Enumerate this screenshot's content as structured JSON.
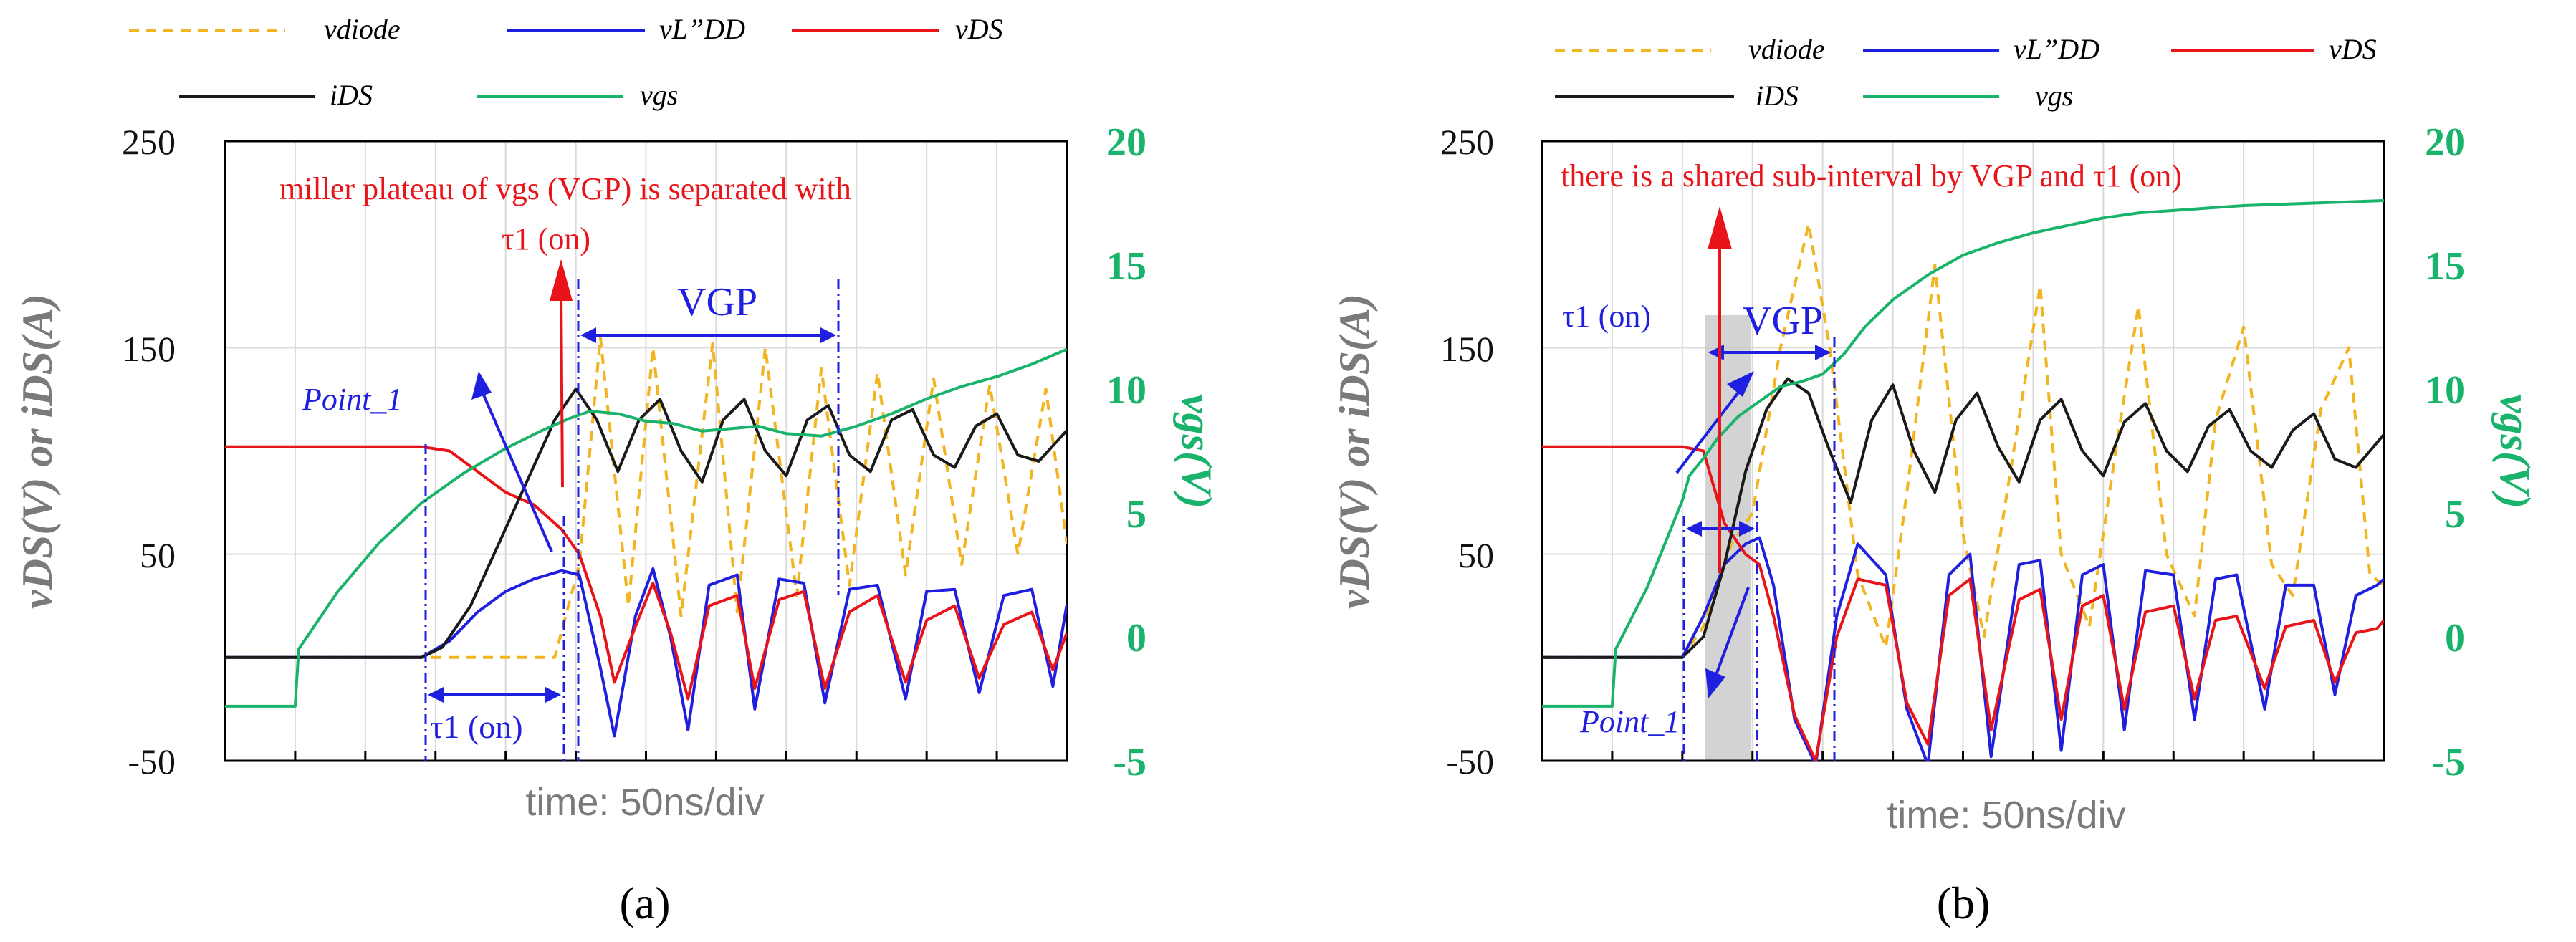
{
  "figure": {
    "panels": [
      {
        "caption": "(a)",
        "legend": [
          "vdiode",
          "vL”DD",
          "vDS",
          "iDS",
          "vgs"
        ],
        "ylabel_left": "vDS(V) or iDS(A)",
        "ylabel_right": "vgs(V)",
        "xlabel": "time: 50ns/div",
        "annotations": {
          "note_line1": "miller plateau of vgs (VGP) is  separated with",
          "note_line2": "τ1 (on)",
          "vgp": "VGP",
          "tau": "τ1 (on)",
          "point": "Point_1"
        }
      },
      {
        "caption": "(b)",
        "legend": [
          "vdiode",
          "vL”DD",
          "vDS",
          "iDS",
          "vgs"
        ],
        "ylabel_left": "vDS(V) or iDS(A)",
        "ylabel_right": "vgs(V)",
        "xlabel": "time: 50ns/div",
        "annotations": {
          "note_line1": "there is a shared sub-interval by VGP and τ1 (on)",
          "vgp": "VGP",
          "tau": "τ1 (on)",
          "point": "Point_1"
        }
      }
    ]
  },
  "chart_data": [
    {
      "type": "line",
      "title": "(a)",
      "xlabel": "time: 50ns/div",
      "ylabel": "vDS(V) or iDS(A)",
      "ylabel_right": "vgs(V)",
      "ylim": [
        -50,
        250
      ],
      "ylim_right": [
        -5,
        20
      ],
      "yticks": [
        -50,
        50,
        150,
        250
      ],
      "yticks_right": [
        -5,
        0,
        5,
        10,
        15,
        20
      ],
      "xlim": [
        0,
        12
      ],
      "grid": true,
      "series": [
        {
          "name": "vdiode",
          "color": "#f2b521",
          "dash": true,
          "x": [
            0,
            4.7,
            5.05,
            5.35,
            5.75,
            6.1,
            6.5,
            6.95,
            7.3,
            7.7,
            8.15,
            8.5,
            8.9,
            9.3,
            9.7,
            10.1,
            10.5,
            10.9,
            11.3,
            11.7,
            12
          ],
          "y": [
            0,
            0,
            45,
            155,
            25,
            150,
            20,
            152,
            22,
            150,
            30,
            140,
            35,
            138,
            40,
            135,
            45,
            132,
            50,
            130,
            55
          ]
        },
        {
          "name": "vL”DD",
          "color": "#1f1fe0",
          "x": [
            0,
            2.8,
            3.2,
            3.6,
            4.0,
            4.4,
            4.8,
            5.05,
            5.35,
            5.55,
            5.85,
            6.1,
            6.35,
            6.6,
            6.9,
            7.3,
            7.55,
            7.9,
            8.25,
            8.55,
            8.9,
            9.3,
            9.7,
            10.0,
            10.4,
            10.75,
            11.1,
            11.5,
            11.8,
            12
          ],
          "y": [
            0,
            0,
            8,
            22,
            32,
            38,
            42,
            40,
            -5,
            -38,
            20,
            43,
            10,
            -35,
            35,
            40,
            -25,
            38,
            36,
            -22,
            33,
            35,
            -20,
            32,
            33,
            -17,
            30,
            33,
            -14,
            26
          ]
        },
        {
          "name": "vDS",
          "color": "#e8141a",
          "x": [
            0,
            2.8,
            3.2,
            3.6,
            4.0,
            4.4,
            4.8,
            5.05,
            5.35,
            5.55,
            5.85,
            6.1,
            6.35,
            6.6,
            6.9,
            7.3,
            7.55,
            7.9,
            8.25,
            8.55,
            8.9,
            9.3,
            9.7,
            10.0,
            10.4,
            10.75,
            11.1,
            11.5,
            11.8,
            12
          ],
          "y": [
            102,
            102,
            100,
            90,
            80,
            74,
            62,
            50,
            20,
            -12,
            15,
            36,
            12,
            -20,
            25,
            30,
            -15,
            28,
            32,
            -15,
            22,
            30,
            -12,
            18,
            25,
            -10,
            16,
            22,
            -6,
            12
          ]
        },
        {
          "name": "iDS",
          "color": "#1a1a1a",
          "x": [
            0,
            2.8,
            3.1,
            3.5,
            3.9,
            4.3,
            4.7,
            5.0,
            5.3,
            5.6,
            5.9,
            6.2,
            6.5,
            6.8,
            7.1,
            7.4,
            7.7,
            8.0,
            8.3,
            8.6,
            8.9,
            9.2,
            9.5,
            9.8,
            10.1,
            10.4,
            10.7,
            11.0,
            11.3,
            11.6,
            12
          ],
          "y": [
            0,
            0,
            5,
            25,
            55,
            85,
            115,
            130,
            115,
            90,
            115,
            125,
            100,
            85,
            115,
            125,
            100,
            88,
            115,
            122,
            98,
            90,
            115,
            120,
            98,
            92,
            112,
            118,
            98,
            95,
            110
          ]
        },
        {
          "name": "vgs",
          "color": "#19b36b",
          "axis": "right",
          "x": [
            0,
            1.0,
            1.05,
            1.6,
            2.2,
            2.8,
            3.4,
            4.0,
            4.5,
            4.9,
            5.2,
            5.6,
            6.0,
            6.4,
            6.8,
            7.2,
            7.6,
            8.0,
            8.5,
            9.0,
            9.5,
            10.0,
            10.5,
            11.0,
            11.5,
            12
          ],
          "y": [
            -2.8,
            -2.8,
            -0.5,
            1.8,
            3.8,
            5.4,
            6.6,
            7.6,
            8.3,
            8.8,
            9.1,
            9.0,
            8.7,
            8.6,
            8.3,
            8.4,
            8.5,
            8.2,
            8.1,
            8.5,
            9.0,
            9.6,
            10.1,
            10.5,
            11.0,
            11.6
          ]
        }
      ]
    },
    {
      "type": "line",
      "title": "(b)",
      "xlabel": "time: 50ns/div",
      "ylabel": "vDS(V) or iDS(A)",
      "ylabel_right": "vgs(V)",
      "ylim": [
        -50,
        250
      ],
      "ylim_right": [
        -5,
        20
      ],
      "yticks": [
        -50,
        50,
        150,
        250
      ],
      "yticks_right": [
        -5,
        0,
        5,
        10,
        15,
        20
      ],
      "xlim": [
        0,
        12
      ],
      "grid": true,
      "series": [
        {
          "name": "vdiode",
          "color": "#f2b521",
          "dash": true,
          "x": [
            0,
            2.0,
            2.3,
            2.7,
            3.0,
            3.4,
            3.8,
            4.1,
            4.5,
            4.9,
            5.2,
            5.6,
            6.0,
            6.3,
            6.7,
            7.1,
            7.4,
            7.8,
            8.2,
            8.5,
            8.9,
            9.3,
            9.6,
            10.0,
            10.4,
            10.7,
            11.1,
            11.5,
            11.8,
            12
          ],
          "y": [
            0,
            0,
            15,
            55,
            70,
            150,
            210,
            150,
            40,
            5,
            80,
            190,
            60,
            10,
            95,
            180,
            50,
            15,
            105,
            170,
            50,
            20,
            115,
            160,
            45,
            30,
            120,
            150,
            40,
            35
          ]
        },
        {
          "name": "vL”DD",
          "color": "#1f1fe0",
          "x": [
            0,
            2.0,
            2.3,
            2.6,
            2.9,
            3.1,
            3.3,
            3.6,
            3.9,
            4.2,
            4.5,
            4.9,
            5.2,
            5.5,
            5.8,
            6.1,
            6.4,
            6.8,
            7.1,
            7.4,
            7.7,
            8.0,
            8.3,
            8.6,
            9.0,
            9.3,
            9.6,
            9.9,
            10.3,
            10.6,
            11.0,
            11.3,
            11.6,
            11.9,
            12
          ],
          "y": [
            0,
            0,
            20,
            45,
            55,
            58,
            35,
            -30,
            -52,
            20,
            55,
            40,
            -25,
            -52,
            40,
            50,
            -48,
            45,
            47,
            -45,
            40,
            45,
            -35,
            42,
            40,
            -30,
            38,
            40,
            -25,
            35,
            35,
            -18,
            30,
            35,
            38
          ]
        },
        {
          "name": "vDS",
          "color": "#e8141a",
          "x": [
            0,
            2.0,
            2.3,
            2.6,
            2.9,
            3.1,
            3.3,
            3.6,
            3.9,
            4.2,
            4.5,
            4.9,
            5.2,
            5.5,
            5.8,
            6.1,
            6.4,
            6.8,
            7.1,
            7.4,
            7.7,
            8.0,
            8.3,
            8.6,
            9.0,
            9.3,
            9.6,
            9.9,
            10.3,
            10.6,
            11.0,
            11.3,
            11.6,
            11.9,
            12
          ],
          "y": [
            102,
            102,
            100,
            65,
            50,
            45,
            20,
            -28,
            -50,
            10,
            38,
            35,
            -22,
            -42,
            30,
            38,
            -35,
            28,
            33,
            -30,
            25,
            30,
            -25,
            22,
            25,
            -20,
            18,
            20,
            -15,
            15,
            18,
            -12,
            12,
            14,
            18
          ]
        },
        {
          "name": "iDS",
          "color": "#1a1a1a",
          "x": [
            0,
            2.0,
            2.3,
            2.6,
            2.9,
            3.2,
            3.5,
            3.8,
            4.1,
            4.4,
            4.7,
            5.0,
            5.3,
            5.6,
            5.9,
            6.2,
            6.5,
            6.8,
            7.1,
            7.4,
            7.7,
            8.0,
            8.3,
            8.6,
            8.9,
            9.2,
            9.5,
            9.8,
            10.1,
            10.4,
            10.7,
            11.0,
            11.3,
            11.6,
            12
          ],
          "y": [
            0,
            0,
            10,
            45,
            90,
            120,
            135,
            128,
            100,
            75,
            115,
            132,
            100,
            80,
            115,
            128,
            102,
            85,
            115,
            125,
            100,
            88,
            114,
            123,
            100,
            90,
            112,
            120,
            100,
            92,
            110,
            118,
            96,
            92,
            108
          ]
        },
        {
          "name": "vgs",
          "color": "#19b36b",
          "axis": "right",
          "x": [
            0,
            1.0,
            1.05,
            1.5,
            2.0,
            2.1,
            2.3,
            2.5,
            2.8,
            3.1,
            3.4,
            3.7,
            4.0,
            4.3,
            4.6,
            5.0,
            5.5,
            6.0,
            6.5,
            7.0,
            7.5,
            8.0,
            8.5,
            9.0,
            9.5,
            10.0,
            10.5,
            11.0,
            11.5,
            12
          ],
          "y": [
            -2.8,
            -2.8,
            -0.5,
            2.0,
            5.5,
            6.5,
            7.2,
            8.0,
            8.9,
            9.5,
            10.1,
            10.3,
            10.6,
            11.4,
            12.5,
            13.6,
            14.6,
            15.4,
            15.9,
            16.3,
            16.6,
            16.9,
            17.1,
            17.2,
            17.3,
            17.4,
            17.45,
            17.5,
            17.55,
            17.6
          ]
        }
      ]
    }
  ]
}
